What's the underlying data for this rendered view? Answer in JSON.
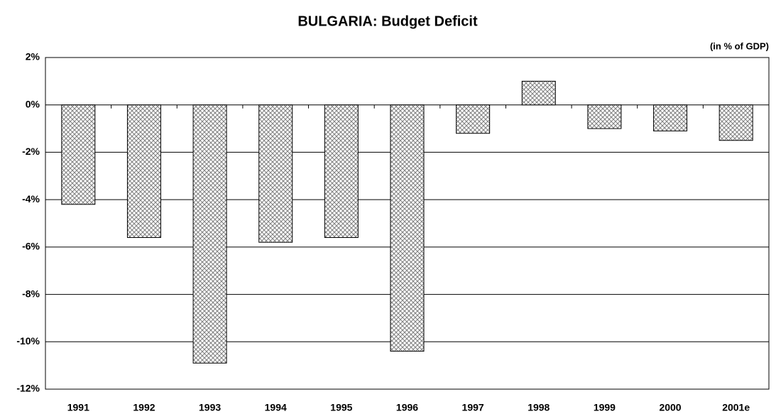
{
  "chart_data": {
    "type": "bar",
    "title": "BULGARIA: Budget Deficit",
    "unit_label": "(in % of GDP)",
    "categories": [
      "1991",
      "1992",
      "1993",
      "1994",
      "1995",
      "1996",
      "1997",
      "1998",
      "1999",
      "2000",
      "2001e"
    ],
    "values": [
      -4.2,
      -5.6,
      -10.9,
      -5.8,
      -5.6,
      -10.4,
      -1.2,
      1.0,
      -1.0,
      -1.1,
      -1.5
    ],
    "color": "#808080",
    "ylim": [
      -12,
      2
    ],
    "yticks": [
      {
        "value": -12,
        "label": "-12%"
      },
      {
        "value": -10,
        "label": "-10%"
      },
      {
        "value": -8,
        "label": "-8%"
      },
      {
        "value": -6,
        "label": "-6%"
      },
      {
        "value": -4,
        "label": "-4%"
      },
      {
        "value": -2,
        "label": "-2%"
      },
      {
        "value": 0,
        "label": "0%"
      },
      {
        "value": 2,
        "label": "2%"
      }
    ],
    "grid": true
  }
}
